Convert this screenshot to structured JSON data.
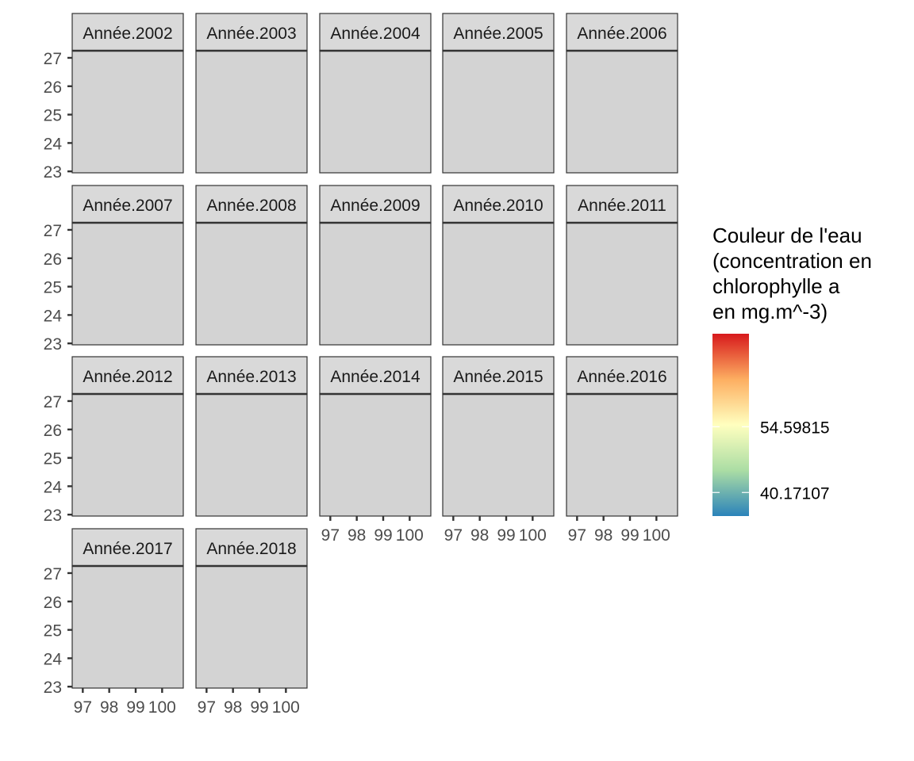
{
  "chart_data": {
    "type": "heatmap",
    "facet_label_prefix": "Année.",
    "facets": [
      {
        "label": "Année.2002",
        "year": 2002
      },
      {
        "label": "Année.2003",
        "year": 2003
      },
      {
        "label": "Année.2004",
        "year": 2004
      },
      {
        "label": "Année.2005",
        "year": 2005
      },
      {
        "label": "Année.2006",
        "year": 2006
      },
      {
        "label": "Année.2007",
        "year": 2007
      },
      {
        "label": "Année.2008",
        "year": 2008
      },
      {
        "label": "Année.2009",
        "year": 2009
      },
      {
        "label": "Année.2010",
        "year": 2010
      },
      {
        "label": "Année.2011",
        "year": 2011
      },
      {
        "label": "Année.2012",
        "year": 2012
      },
      {
        "label": "Année.2013",
        "year": 2013
      },
      {
        "label": "Année.2014",
        "year": 2014
      },
      {
        "label": "Année.2015",
        "year": 2015
      },
      {
        "label": "Année.2016",
        "year": 2016
      },
      {
        "label": "Année.2017",
        "year": 2017
      },
      {
        "label": "Année.2018",
        "year": 2018
      }
    ],
    "facet_columns": 5,
    "x_ticks": [
      97,
      98,
      99,
      100
    ],
    "x_tick_labels": [
      "97",
      "98",
      "99",
      "100"
    ],
    "xlim": [
      96.6,
      100.8
    ],
    "y_ticks": [
      23,
      24,
      25,
      26,
      27
    ],
    "y_tick_labels": [
      "23",
      "24",
      "25",
      "26",
      "27"
    ],
    "ylim": [
      22.95,
      27.25
    ],
    "xlabel": "",
    "ylabel": "",
    "panel_background": "#d3d3d3",
    "strip_background": "#d9d9d9",
    "legend": {
      "title_lines": [
        "Couleur de l'eau",
        "(concentration en",
        "chlorophylle a",
        "en mg.m^-3)"
      ],
      "placement": "right",
      "scale_range": [
        35.0,
        75.0
      ],
      "breaks": [
        54.59815,
        40.17107
      ],
      "break_labels": [
        "54.59815",
        "40.17107"
      ],
      "colors": [
        "#2b83ba",
        "#abdda4",
        "#ffffbf",
        "#fdae61",
        "#d7191c"
      ]
    }
  }
}
